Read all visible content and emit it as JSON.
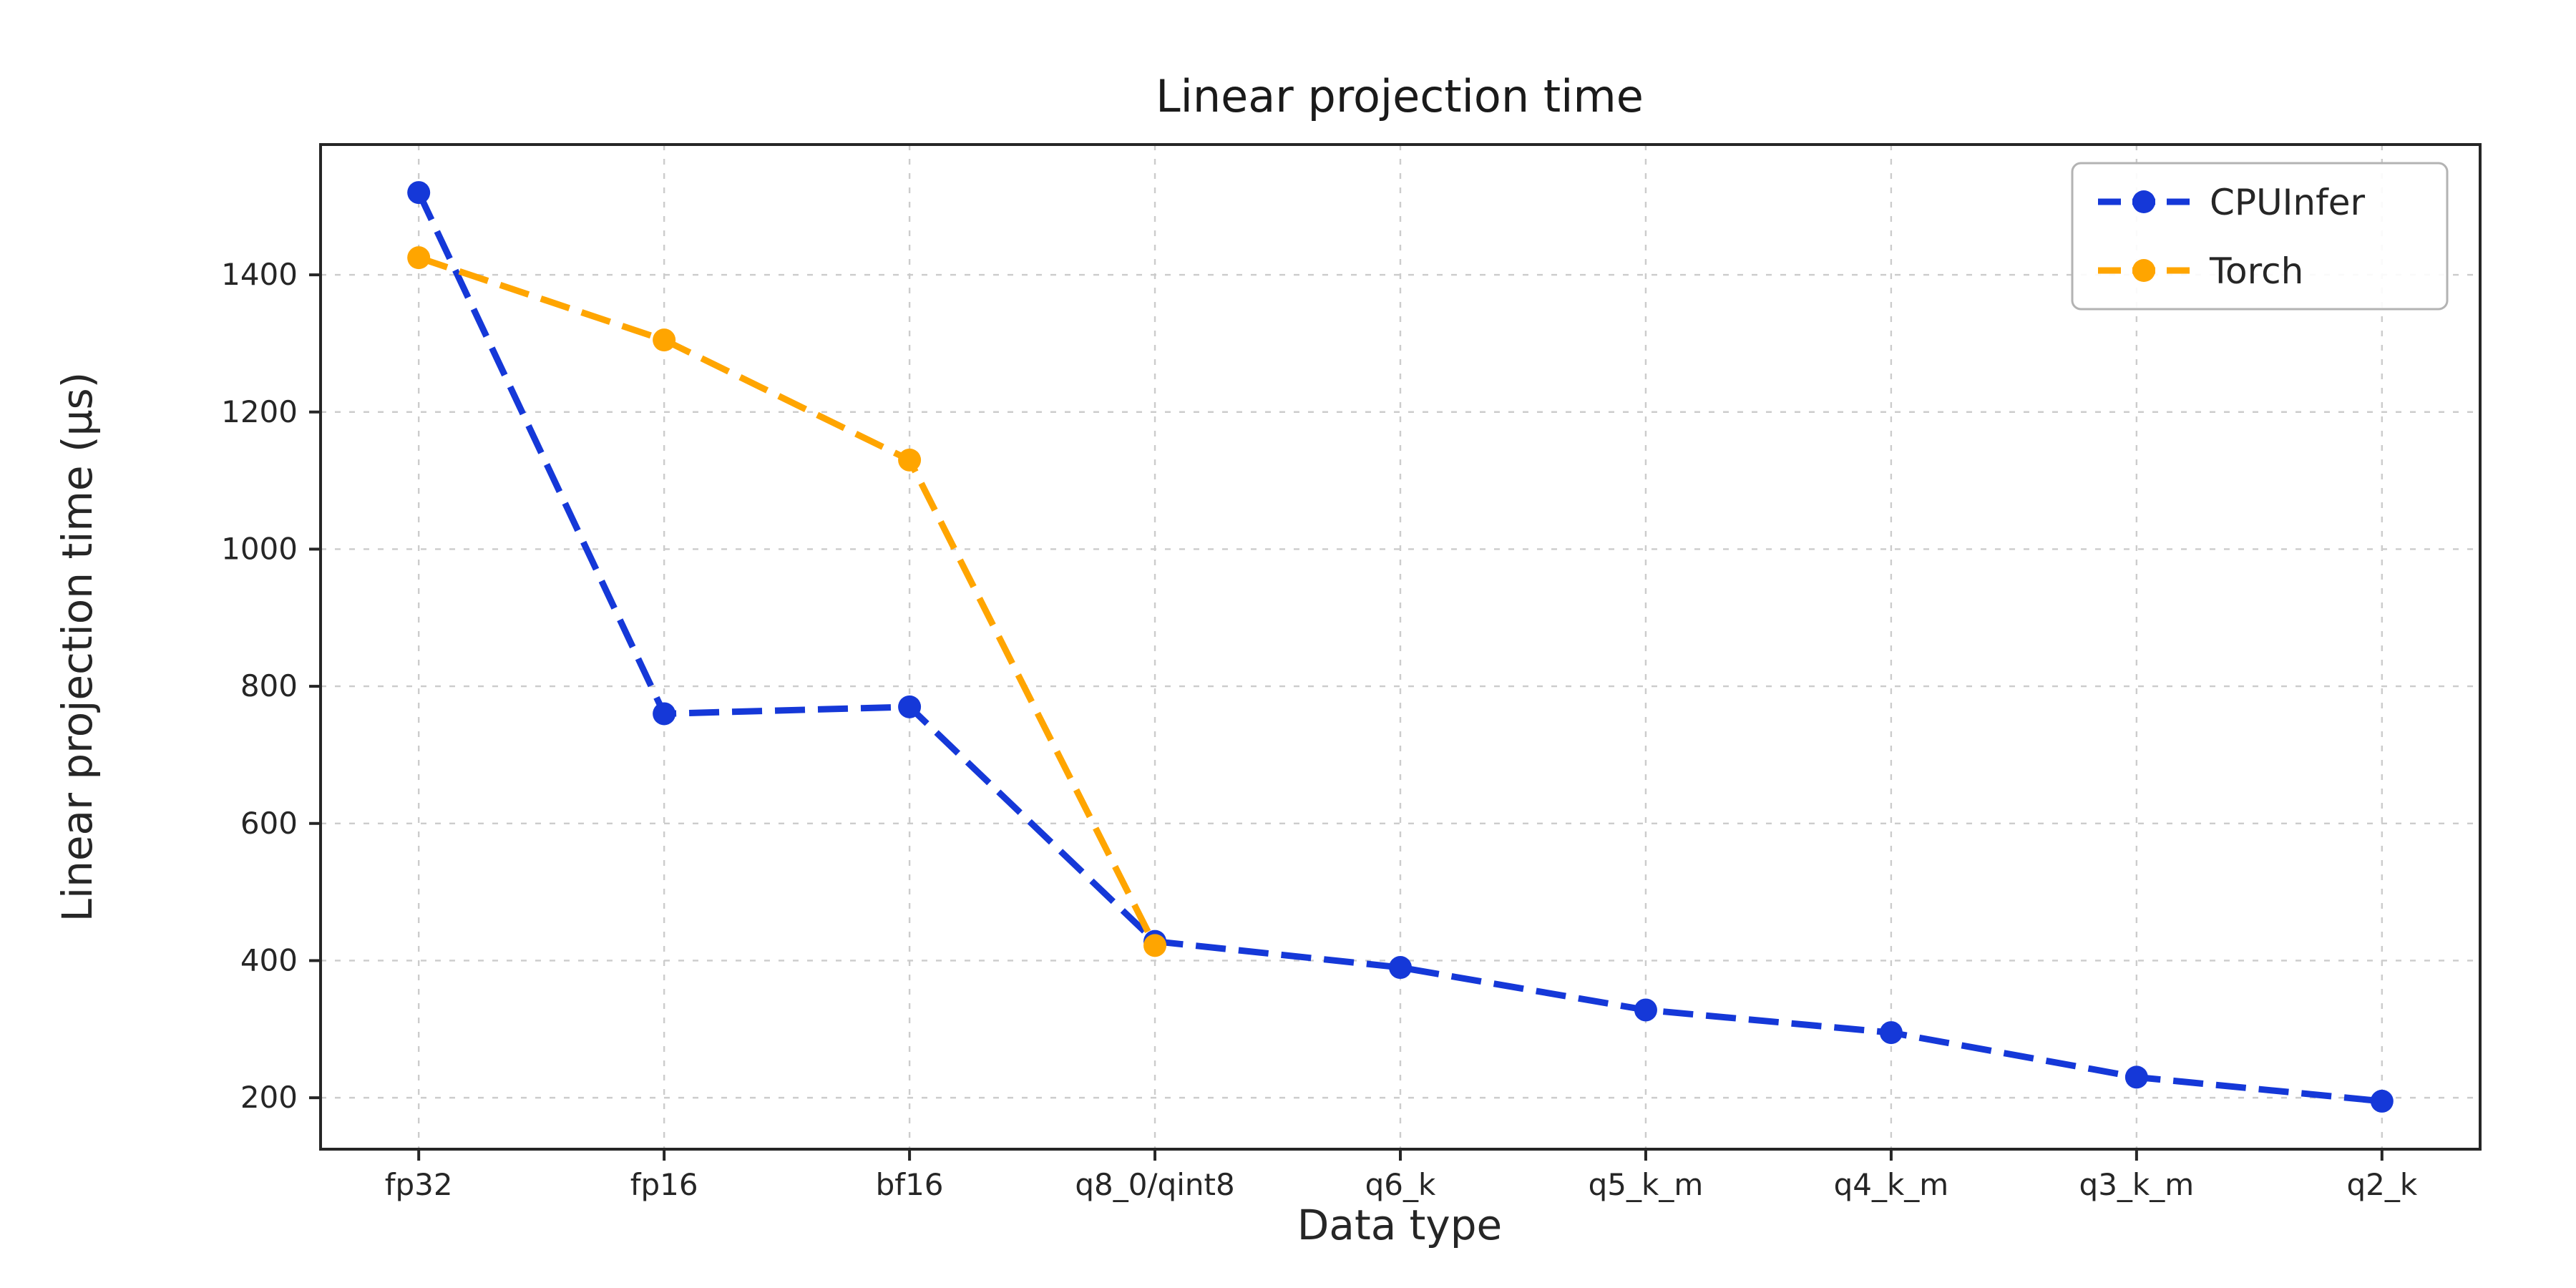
{
  "chart_data": {
    "type": "line",
    "title": "Linear projection time",
    "xlabel": "Data type",
    "ylabel": "Linear projection time (µs)",
    "categories": [
      "fp32",
      "fp16",
      "bf16",
      "q8_0/qint8",
      "q6_k",
      "q5_k_m",
      "q4_k_m",
      "q3_k_m",
      "q2_k"
    ],
    "series": [
      {
        "name": "CPUInfer",
        "color": "#1538d8",
        "line_style": "dashed",
        "marker": "circle",
        "values": [
          1520,
          760,
          770,
          428,
          390,
          328,
          295,
          230,
          195
        ]
      },
      {
        "name": "Torch",
        "color": "#ffa500",
        "line_style": "dashed",
        "marker": "circle",
        "values": [
          1425,
          1305,
          1130,
          422,
          null,
          null,
          null,
          null,
          null
        ]
      }
    ],
    "yticks": [
      200,
      400,
      600,
      800,
      1000,
      1200,
      1400
    ],
    "ylim": [
      125,
      1590
    ],
    "grid": true,
    "grid_style": "dashed",
    "legend_position": "upper right",
    "colors": {
      "grid": "#cccccc",
      "spine": "#262626",
      "background": "#ffffff",
      "legend_border": "#b3b3b3"
    }
  }
}
